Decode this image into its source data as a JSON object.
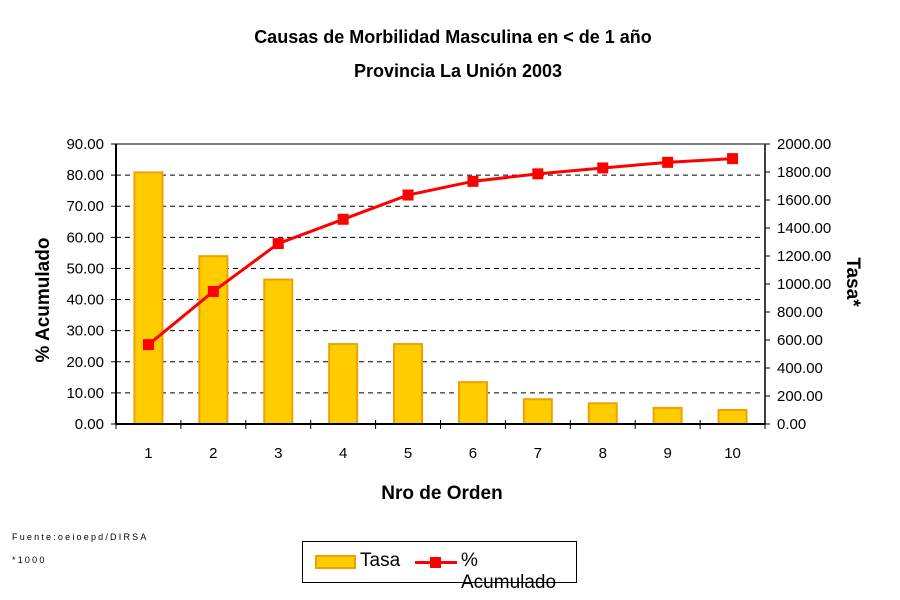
{
  "chart_data": {
    "type": "bar+line",
    "title": "Causas de Morbilidad Masculina en < de 1 año",
    "subtitle": "Provincia La Unión 2003",
    "xlabel": "Nro de Orden",
    "ylabel_left": "% Acumulado",
    "ylabel_right": "Tasa*",
    "categories": [
      "1",
      "2",
      "3",
      "4",
      "5",
      "6",
      "7",
      "8",
      "9",
      "10"
    ],
    "y_left": {
      "min": 0,
      "max": 90,
      "step": 10,
      "ticks": [
        "0.00",
        "10.00",
        "20.00",
        "30.00",
        "40.00",
        "50.00",
        "60.00",
        "70.00",
        "80.00",
        "90.00"
      ]
    },
    "y_right": {
      "min": 0,
      "max": 2000,
      "step": 200,
      "ticks": [
        "0.00",
        "200.00",
        "400.00",
        "600.00",
        "800.00",
        "1000.00",
        "1200.00",
        "1400.00",
        "1600.00",
        "1800.00",
        "2000.00"
      ]
    },
    "grid": "horizontal dashed",
    "legend_position": "bottom",
    "series": [
      {
        "name": "Tasa",
        "type": "bar",
        "axis": "right",
        "color": "#FFCC00",
        "edge_color": "#F0A000",
        "values": [
          1797,
          1199,
          1032,
          571,
          571,
          299,
          177,
          148,
          115,
          100
        ]
      },
      {
        "name": "% Acumulado",
        "type": "line",
        "axis": "left",
        "color": "#FF0000",
        "marker": "square",
        "values": [
          25.5,
          42.6,
          58.0,
          65.8,
          73.6,
          78.0,
          80.4,
          82.3,
          84.1,
          85.3
        ]
      }
    ]
  },
  "legend": {
    "items": [
      {
        "label": "Tasa"
      },
      {
        "label": "% Acumulado"
      }
    ]
  },
  "footnotes": {
    "source": "Fuente:oeioepd/DIRSA",
    "note": "*1000"
  }
}
